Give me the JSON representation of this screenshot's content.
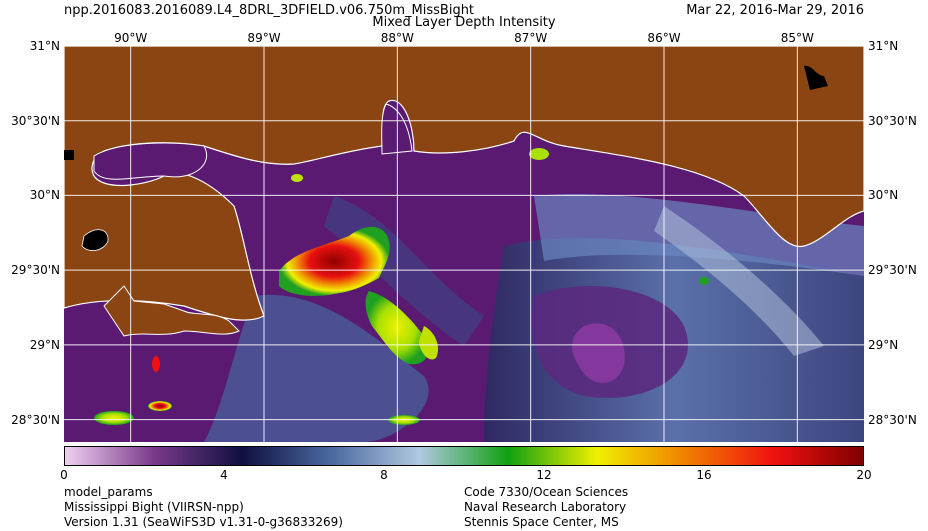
{
  "header": {
    "product_name": "npp.2016083.2016089.L4_8DRL_3DFIELD.v06.750m_MissBight",
    "parameter": "Mixed Layer Depth Intensity",
    "date_range": "Mar 22, 2016-Mar 29, 2016"
  },
  "map": {
    "region": "Mississippi Bight",
    "land_color": "#8b4513",
    "grid_color": "#ffffff",
    "coast_color": "#ffffff",
    "lon_ticks_top": [
      "90°W",
      "89°W",
      "88°W",
      "87°W",
      "86°W",
      "85°W"
    ],
    "lat_ticks_left": [
      "31°N",
      "30°30'N",
      "30°N",
      "29°30'N",
      "29°N",
      "28°30'N"
    ],
    "lat_ticks_right": [
      "31°N",
      "30°30'N",
      "30°N",
      "29°30'N",
      "29°N",
      "28°30'N"
    ],
    "lon_values": [
      -90,
      -89,
      -88,
      -87,
      -86,
      -85
    ],
    "lat_values": [
      31,
      30.5,
      30,
      29.5,
      29,
      28.5
    ],
    "lon_range": [
      -90.5,
      -84.5
    ],
    "lat_range": [
      28.35,
      31.0
    ]
  },
  "colorbar": {
    "min": 0,
    "max": 20,
    "tick_labels": [
      "0",
      "4",
      "8",
      "12",
      "16",
      "20"
    ],
    "tick_values": [
      0,
      4,
      8,
      12,
      16,
      20
    ],
    "colors": [
      "#f0d0f0",
      "#7a3a8a",
      "#101040",
      "#4a6aa0",
      "#b0c8e0",
      "#10a010",
      "#f0f000",
      "#f08000",
      "#f01010",
      "#800000"
    ]
  },
  "footer": {
    "left_line1": "model_params",
    "left_line2": "Mississippi Bight (VIIRSN-npp)",
    "left_line3": "Version 1.31 (SeaWiFS3D v1.31-0-g36833269)",
    "right_line1": "Code 7330/Ocean Sciences",
    "right_line2": "Naval Research Laboratory",
    "right_line3": "Stennis Space Center, MS"
  }
}
